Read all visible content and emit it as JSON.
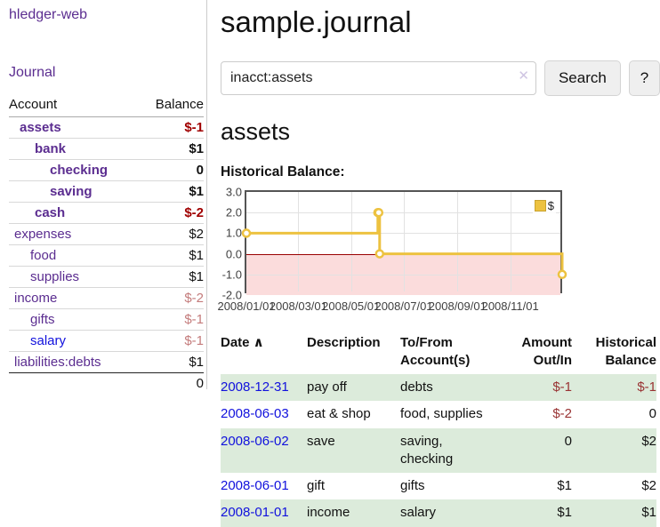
{
  "colors": {
    "purple": "#5b2d90",
    "blue": "#1111dd",
    "neg_strong": "#a00000",
    "neg_soft": "#c47c7c",
    "txn_neg": "#993333",
    "row_green": "#dcebdb",
    "chart_yellow": "#edc240",
    "neg_zone": "#fbdcdc",
    "zero_line": "#990000"
  },
  "sidebar": {
    "brand": "hledger-web",
    "journal_label": "Journal",
    "accounts": {
      "headers": [
        "Account",
        "Balance"
      ],
      "rows": [
        {
          "name": "assets",
          "depth": 0,
          "group": true,
          "balance": "$-1",
          "balance_style": "neg-strong"
        },
        {
          "name": "bank",
          "depth": 1,
          "group": true,
          "balance": "$1",
          "balance_style": "normal"
        },
        {
          "name": "checking",
          "depth": 2,
          "group": true,
          "balance": "0",
          "balance_style": "normal"
        },
        {
          "name": "saving",
          "depth": 2,
          "group": true,
          "balance": "$1",
          "balance_style": "normal"
        },
        {
          "name": "cash",
          "depth": 1,
          "group": true,
          "balance": "$-2",
          "balance_style": "neg-strong"
        },
        {
          "name": "expenses",
          "depth": 0,
          "group": false,
          "balance": "$2",
          "balance_style": "normal"
        },
        {
          "name": "food",
          "depth": 1,
          "group": false,
          "balance": "$1",
          "balance_style": "normal"
        },
        {
          "name": "supplies",
          "depth": 1,
          "group": false,
          "balance": "$1",
          "balance_style": "normal"
        },
        {
          "name": "income",
          "depth": 0,
          "group": false,
          "balance": "$-2",
          "balance_style": "neg-soft"
        },
        {
          "name": "gifts",
          "depth": 1,
          "group": false,
          "balance": "$-1",
          "balance_style": "neg-soft"
        },
        {
          "name": "salary",
          "depth": 1,
          "group": false,
          "balance": "$-1",
          "balance_style": "neg-soft",
          "link": "blue"
        },
        {
          "name": "liabilities:debts",
          "depth": 0,
          "group": false,
          "balance": "$1",
          "balance_style": "normal"
        }
      ],
      "total": "0"
    }
  },
  "main": {
    "title": "sample.journal",
    "search": {
      "value": "inacct:assets",
      "clear_icon": "✕",
      "button_label": "Search",
      "help_label": "?"
    },
    "account_heading": "assets",
    "chart_label": "Historical Balance:"
  },
  "chart_data": {
    "type": "line",
    "title": "Historical Balance",
    "step": true,
    "series": [
      {
        "name": "$",
        "color": "#edc240",
        "points": [
          [
            "2008-01-01",
            1
          ],
          [
            "2008-06-01",
            2
          ],
          [
            "2008-06-02",
            2
          ],
          [
            "2008-06-03",
            0
          ],
          [
            "2008-12-31",
            -1
          ]
        ]
      }
    ],
    "x_ticks": [
      "2008/01/01",
      "2008/03/01",
      "2008/05/01",
      "2008/07/01",
      "2008/09/01",
      "2008/11/01"
    ],
    "y_ticks": [
      3.0,
      2.0,
      1.0,
      0.0,
      -1.0,
      -2.0
    ],
    "xlim": [
      "2008-01-01",
      "2008-12-31"
    ],
    "ylim": [
      -2,
      3
    ],
    "grid": true,
    "legend": {
      "label": "$",
      "position": "top-right"
    }
  },
  "transactions": {
    "headers": [
      {
        "key": "date",
        "lines": [
          "Date"
        ],
        "sort": "∧",
        "align": "left",
        "sortable": true
      },
      {
        "key": "description",
        "lines": [
          "Description"
        ],
        "align": "left"
      },
      {
        "key": "accounts",
        "lines": [
          "To/From",
          "Account(s)"
        ],
        "align": "left"
      },
      {
        "key": "amount",
        "lines": [
          "Amount",
          "Out/In"
        ],
        "align": "right"
      },
      {
        "key": "balance",
        "lines": [
          "Historical",
          "Balance"
        ],
        "align": "right"
      }
    ],
    "rows": [
      {
        "date": "2008-12-31",
        "description": "pay off",
        "accounts": "debts",
        "amount": "$-1",
        "amount_negative": true,
        "balance": "$-1",
        "balance_negative": true
      },
      {
        "date": "2008-06-03",
        "description": "eat & shop",
        "accounts": "food, supplies",
        "amount": "$-2",
        "amount_negative": true,
        "balance": "0",
        "balance_negative": false
      },
      {
        "date": "2008-06-02",
        "description": "save",
        "accounts": "saving, checking",
        "amount": "0",
        "amount_negative": false,
        "balance": "$2",
        "balance_negative": false
      },
      {
        "date": "2008-06-01",
        "description": "gift",
        "accounts": "gifts",
        "amount": "$1",
        "amount_negative": false,
        "balance": "$2",
        "balance_negative": false
      },
      {
        "date": "2008-01-01",
        "description": "income",
        "accounts": "salary",
        "amount": "$1",
        "amount_negative": false,
        "balance": "$1",
        "balance_negative": false
      }
    ]
  }
}
